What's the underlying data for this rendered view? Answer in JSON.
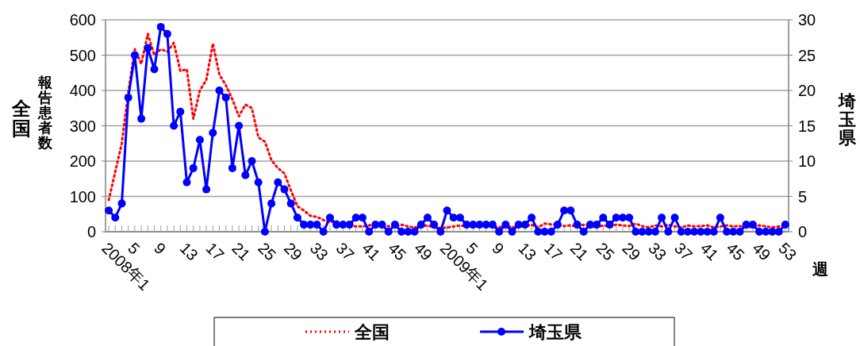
{
  "chart_data": {
    "type": "line",
    "xlabel": "週",
    "ylabel": "全国",
    "y2label": "埼玉県",
    "annotations": [
      "報告患者数"
    ],
    "categories": [
      "2008年1",
      null,
      null,
      null,
      "5",
      null,
      null,
      null,
      "9",
      null,
      null,
      null,
      "13",
      null,
      null,
      null,
      "17",
      null,
      null,
      null,
      "21",
      null,
      null,
      null,
      "25",
      null,
      null,
      null,
      "29",
      null,
      null,
      null,
      "33",
      null,
      null,
      null,
      "37",
      null,
      null,
      null,
      "41",
      null,
      null,
      null,
      "45",
      null,
      null,
      null,
      "49",
      null,
      null,
      null,
      "2009年1",
      null,
      null,
      null,
      "5",
      null,
      null,
      null,
      "9",
      null,
      null,
      null,
      "13",
      null,
      null,
      null,
      "17",
      null,
      null,
      null,
      "21",
      null,
      null,
      null,
      "25",
      null,
      null,
      null,
      "29",
      null,
      null,
      null,
      "33",
      null,
      null,
      null,
      "37",
      null,
      null,
      null,
      "41",
      null,
      null,
      null,
      "45",
      null,
      null,
      null,
      "49",
      null,
      null,
      null,
      "53"
    ],
    "ylim": [
      0,
      600
    ],
    "yticks": [
      0,
      100,
      200,
      300,
      400,
      500,
      600
    ],
    "y2lim": [
      0,
      30
    ],
    "y2ticks": [
      0,
      5,
      10,
      15,
      20,
      25,
      30
    ],
    "grid": "y",
    "legend": "bottom",
    "series": [
      {
        "name": "全国",
        "color": "#ff0000",
        "line_style": "dotted",
        "marker": "none",
        "values": [
          90,
          170,
          250,
          395,
          517,
          475,
          560,
          500,
          517,
          510,
          535,
          455,
          460,
          320,
          400,
          430,
          533,
          445,
          415,
          375,
          327,
          360,
          350,
          267,
          255,
          203,
          180,
          165,
          117,
          72,
          60,
          45,
          42,
          33,
          27,
          30,
          20,
          18,
          15,
          15,
          18,
          20,
          15,
          16,
          14,
          20,
          15,
          12,
          15,
          18,
          12,
          10,
          12,
          15,
          18,
          15,
          12,
          18,
          15,
          15,
          12,
          18,
          12,
          15,
          15,
          20,
          12,
          23,
          21,
          20,
          16,
          18,
          15,
          20,
          15,
          12,
          18,
          15,
          20,
          18,
          16,
          23,
          16,
          12,
          18,
          15,
          20,
          15,
          12,
          18,
          15,
          16,
          18,
          12,
          15,
          18,
          15,
          16,
          12,
          15,
          18,
          15,
          12,
          15,
          18
        ]
      },
      {
        "name": "埼玉県",
        "color": "#0000ff",
        "axis": "y2",
        "line_style": "solid",
        "marker": "circle",
        "values": [
          3,
          2,
          4,
          19,
          25,
          16,
          26,
          23,
          29,
          28,
          15,
          17,
          7,
          9,
          13,
          6,
          14,
          20,
          19,
          9,
          15,
          8,
          10,
          7,
          0,
          4,
          7,
          6,
          4,
          2,
          1,
          1,
          1,
          0,
          2,
          1,
          1,
          1,
          2,
          2,
          0,
          1,
          1,
          0,
          1,
          0,
          0,
          0,
          1,
          2,
          1,
          0,
          3,
          2,
          2,
          1,
          1,
          1,
          1,
          1,
          0,
          1,
          0,
          1,
          1,
          2,
          0,
          0,
          0,
          1,
          3,
          3,
          1,
          0,
          1,
          1,
          2,
          1,
          2,
          2,
          2,
          0,
          0,
          0,
          0,
          2,
          0,
          2,
          0,
          0,
          0,
          0,
          0,
          0,
          2,
          0,
          0,
          0,
          1,
          1,
          0,
          0,
          0,
          0,
          1
        ]
      }
    ]
  }
}
